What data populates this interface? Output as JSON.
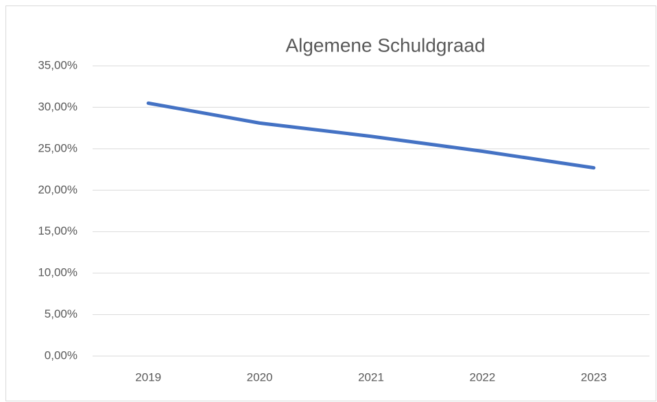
{
  "chart_data": {
    "type": "line",
    "title": "Algemene Schuldgraad",
    "categories": [
      "2019",
      "2020",
      "2021",
      "2022",
      "2023"
    ],
    "series": [
      {
        "name": "Algemene Schuldgraad",
        "color": "#4472c4",
        "values": [
          30.5,
          28.1,
          26.5,
          24.7,
          22.7
        ]
      }
    ],
    "ylim": [
      0,
      35
    ],
    "yticks": [
      {
        "value": 0,
        "label": "0,00%"
      },
      {
        "value": 5,
        "label": "5,00%"
      },
      {
        "value": 10,
        "label": "10,00%"
      },
      {
        "value": 15,
        "label": "15,00%"
      },
      {
        "value": 20,
        "label": "20,00%"
      },
      {
        "value": 25,
        "label": "25,00%"
      },
      {
        "value": 30,
        "label": "30,00%"
      },
      {
        "value": 35,
        "label": "35,00%"
      }
    ],
    "grid": true
  }
}
